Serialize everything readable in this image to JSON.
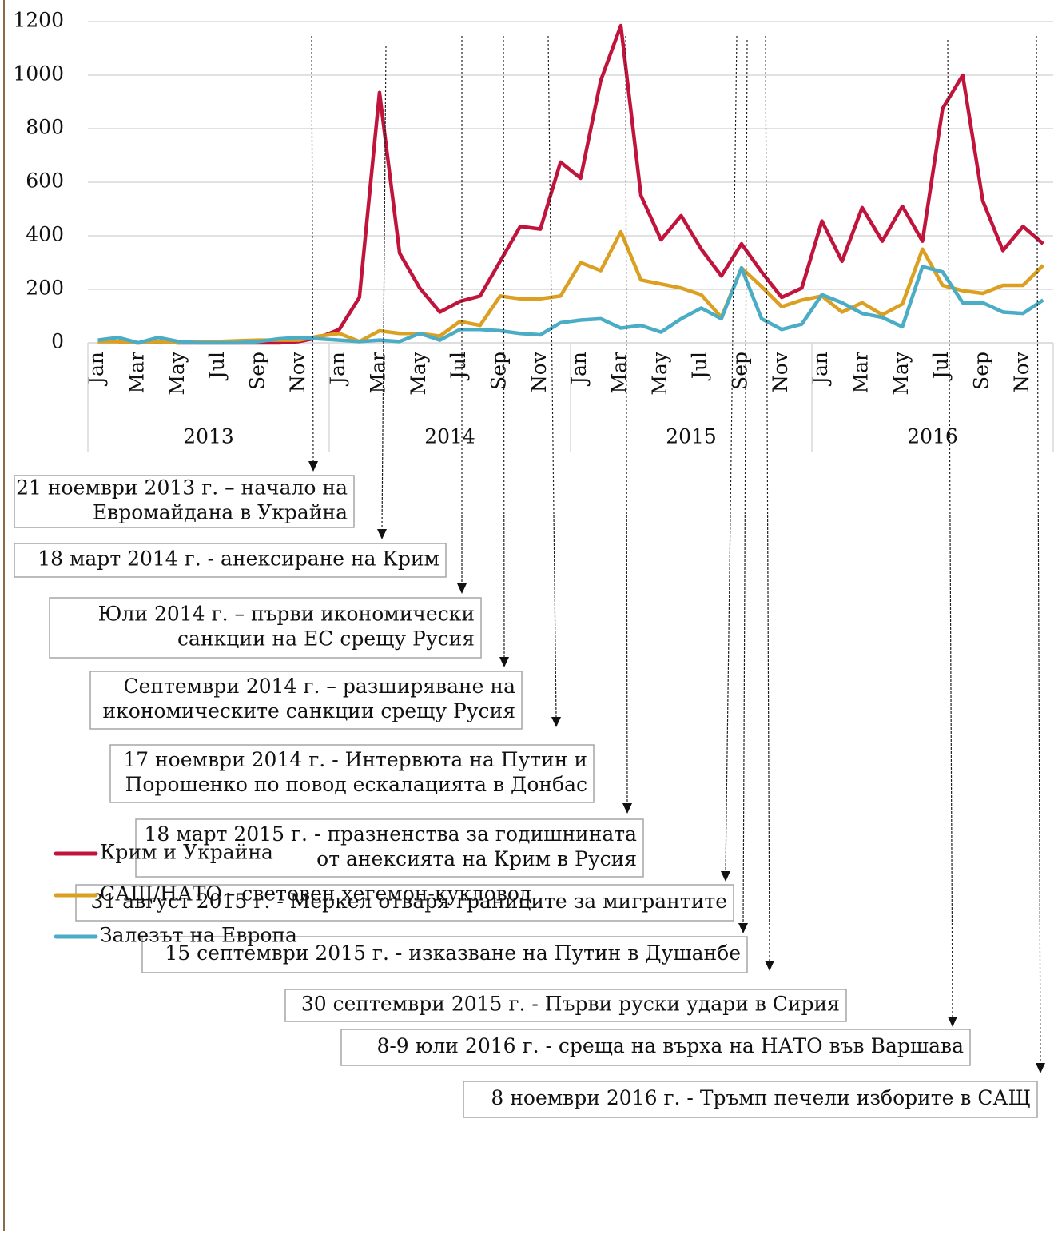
{
  "chart_data": {
    "type": "line",
    "categories": [
      "Jan",
      null,
      "Mar",
      null,
      "May",
      null,
      "Jul",
      null,
      "Sep",
      null,
      "Nov",
      null,
      "Jan",
      null,
      "Mar",
      null,
      "May",
      null,
      "Jul",
      null,
      "Sep",
      null,
      "Nov",
      null,
      "Jan",
      null,
      "Mar",
      null,
      "May",
      null,
      "Jul",
      null,
      "Sep",
      null,
      "Nov",
      null,
      "Jan",
      null,
      "Mar",
      null,
      "May",
      null,
      "Jul",
      null,
      "Sep",
      null,
      "Nov",
      null
    ],
    "years": [
      "2013",
      "2014",
      "2015",
      "2016"
    ],
    "ylim": [
      0,
      1200
    ],
    "yticks": [
      0,
      200,
      400,
      600,
      800,
      1000,
      1200
    ],
    "grid": true,
    "series": [
      {
        "name": "Крим и Украйна",
        "color": "#c0143c",
        "values": [
          5,
          5,
          0,
          5,
          0,
          0,
          0,
          0,
          0,
          0,
          5,
          20,
          50,
          170,
          935,
          335,
          205,
          115,
          155,
          175,
          305,
          435,
          425,
          675,
          615,
          980,
          1185,
          550,
          385,
          475,
          350,
          250,
          370,
          265,
          170,
          205,
          455,
          305,
          505,
          380,
          510,
          380,
          875,
          1000,
          530,
          345,
          435,
          370
        ]
      },
      {
        "name": "САЩ/НАТО - световен хегемон-кукловод",
        "color": "#dba022",
        "values": [
          5,
          5,
          0,
          5,
          0,
          5,
          5,
          8,
          10,
          10,
          10,
          25,
          35,
          5,
          45,
          35,
          35,
          25,
          80,
          65,
          175,
          165,
          165,
          175,
          300,
          270,
          415,
          235,
          220,
          205,
          180,
          95,
          280,
          210,
          135,
          160,
          175,
          115,
          150,
          105,
          145,
          350,
          215,
          195,
          185,
          215,
          215,
          290
        ]
      },
      {
        "name": "Залезът на Европа",
        "color": "#4bacc6",
        "values": [
          10,
          20,
          0,
          20,
          5,
          0,
          0,
          0,
          5,
          15,
          20,
          15,
          10,
          5,
          10,
          5,
          35,
          10,
          50,
          50,
          45,
          35,
          30,
          75,
          85,
          90,
          55,
          65,
          40,
          90,
          130,
          90,
          280,
          90,
          50,
          70,
          180,
          150,
          110,
          95,
          60,
          285,
          265,
          150,
          150,
          115,
          110,
          160
        ]
      }
    ],
    "annotations": [
      {
        "lines": [
          "21 ноември 2013 г. – начало на",
          "Евромайдана в Украйна"
        ]
      },
      {
        "lines": [
          "18 март 2014 г. - анексиране на Крим"
        ]
      },
      {
        "lines": [
          "Юли 2014 г. – първи икономически",
          "санкции на ЕС срещу Русия"
        ]
      },
      {
        "lines": [
          "Септември 2014 г. – разширяване на",
          "икономическите санкции срещу Русия"
        ]
      },
      {
        "lines": [
          "17 ноември 2014 г. - Интервюта на Путин и",
          "Порошенко по повод ескалацията в Донбас"
        ]
      },
      {
        "lines": [
          "18 март 2015 г. - празненства за годишнината",
          "от анексията на Крим в Русия"
        ]
      },
      {
        "lines": [
          "31 август 2015 г. - Меркел отваря границите за мигрантите"
        ]
      },
      {
        "lines": [
          "15 септември 2015 г. - изказване на Путин в Душанбе"
        ]
      },
      {
        "lines": [
          "30 септември 2015 г. - Първи руски удари в Сирия"
        ]
      },
      {
        "lines": [
          "8-9 юли 2016 г. - среща на върха на НАТО във Варшава"
        ]
      },
      {
        "lines": [
          "8 ноември 2016 г. - Тръмп печели изборите в САЩ"
        ]
      }
    ]
  }
}
